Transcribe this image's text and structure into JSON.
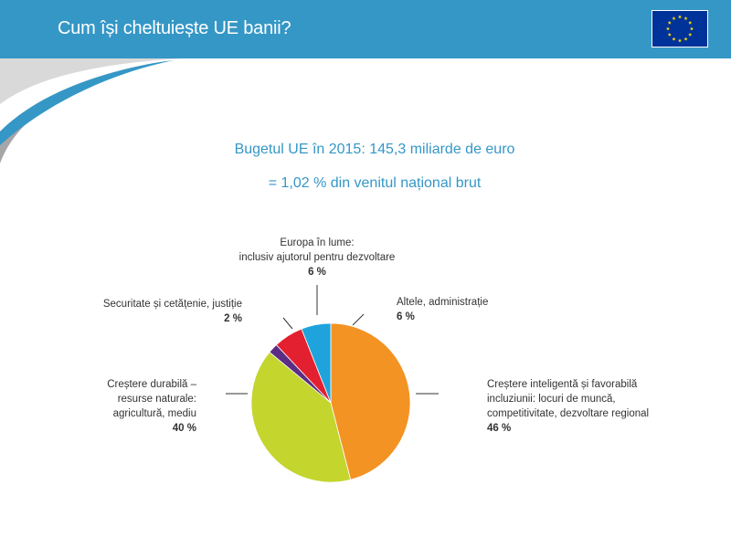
{
  "header": {
    "title": "Cum își cheltuiește UE banii?",
    "bar_color": "#3597c6",
    "flag_icon": "eu-flag-icon"
  },
  "subtitle": {
    "line1": "Bugetul UE în 2015: 145,3 miliarde de euro",
    "line2": "= 1,02 % din venitul național brut"
  },
  "chart_data": {
    "type": "pie",
    "title": "",
    "slices": [
      {
        "label": "Creștere inteligentă și favorabilă\nincluziunii:  locuri de muncă,\ncompetitivitate, dezvoltare regional",
        "value": 46,
        "value_label": "46 %",
        "color": "#f39324"
      },
      {
        "label": "Creștere durabilă –\nresurse naturale:\nagricultură, mediu",
        "value": 40,
        "value_label": "40 %",
        "color": "#c4d52e"
      },
      {
        "label": "Securitate și cetățenie, justiție",
        "value": 2,
        "value_label": "2 %",
        "color": "#5b2d83"
      },
      {
        "label": "Europa în lume:\ninclusiv ajutorul pentru dezvoltare",
        "value": 6,
        "value_label": "6 %",
        "color": "#e3202f"
      },
      {
        "label": "Altele, administrație",
        "value": 6,
        "value_label": "6 %",
        "color": "#1ea3dc"
      }
    ]
  }
}
